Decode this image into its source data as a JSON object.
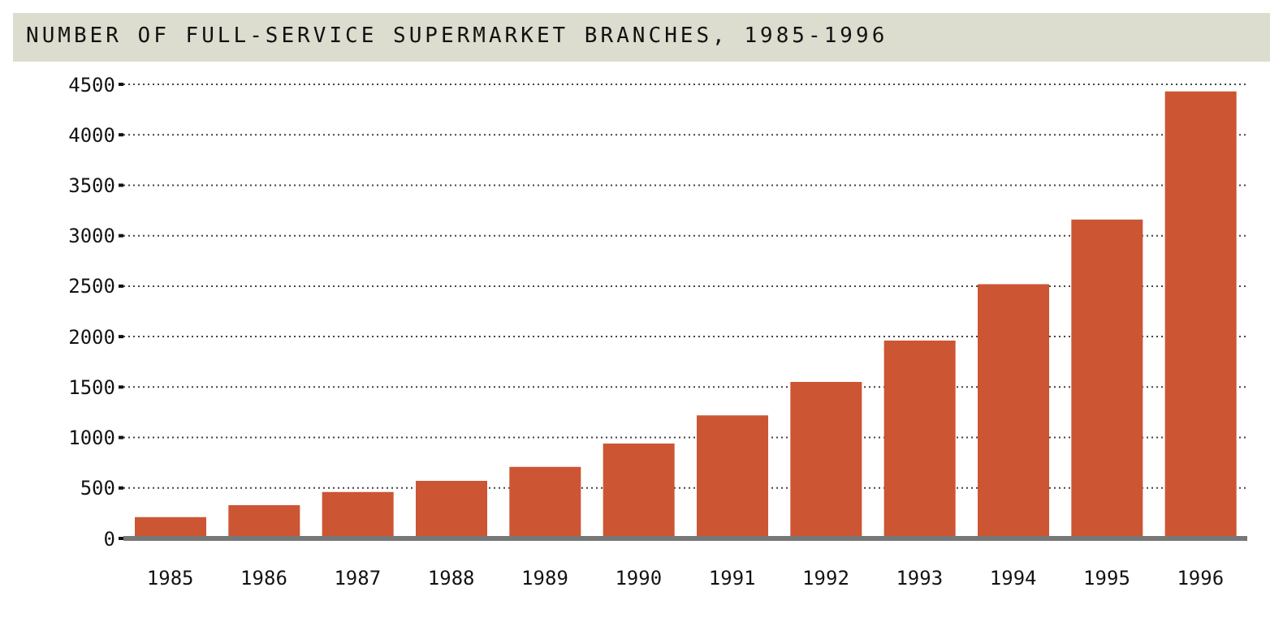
{
  "chart_data": {
    "type": "bar",
    "title": "NUMBER OF FULL-SERVICE SUPERMARKET BRANCHES, 1985-1996",
    "categories": [
      "1985",
      "1986",
      "1987",
      "1988",
      "1989",
      "1990",
      "1991",
      "1992",
      "1993",
      "1994",
      "1995",
      "1996"
    ],
    "values": [
      210,
      330,
      460,
      570,
      710,
      940,
      1220,
      1550,
      1960,
      2520,
      3160,
      4430
    ],
    "color": "#cc5533",
    "ylim": [
      0,
      4500
    ],
    "yticks": [
      0,
      500,
      1000,
      1500,
      2000,
      2500,
      3000,
      3500,
      4000,
      4500
    ],
    "grid": "y"
  }
}
